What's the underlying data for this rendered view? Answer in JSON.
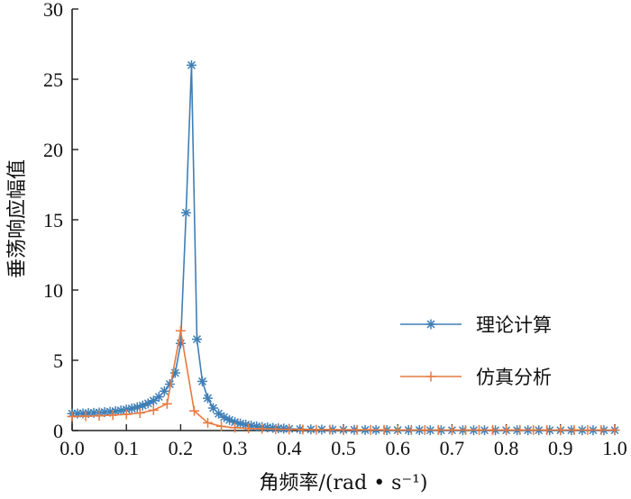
{
  "chart_data": {
    "type": "line",
    "title": "",
    "xlabel": "角频率/(rad • s⁻¹)",
    "ylabel": "垂荡响应幅值",
    "xlim": [
      0,
      1.0
    ],
    "ylim": [
      0,
      30
    ],
    "xticks": [
      "0.0",
      "0.1",
      "0.2",
      "0.3",
      "0.4",
      "0.5",
      "0.6",
      "0.7",
      "0.8",
      "0.9",
      "1.0"
    ],
    "yticks": [
      "0",
      "5",
      "10",
      "15",
      "20",
      "25",
      "30"
    ],
    "legend_position": "right",
    "series": [
      {
        "name": "理论计算",
        "color": "#3f7fb6",
        "marker": "asterisk",
        "x": [
          0.0,
          0.01,
          0.02,
          0.03,
          0.04,
          0.05,
          0.06,
          0.07,
          0.08,
          0.09,
          0.1,
          0.11,
          0.12,
          0.13,
          0.14,
          0.15,
          0.16,
          0.17,
          0.18,
          0.19,
          0.2,
          0.21,
          0.22,
          0.23,
          0.24,
          0.25,
          0.26,
          0.27,
          0.28,
          0.29,
          0.3,
          0.31,
          0.32,
          0.33,
          0.34,
          0.35,
          0.36,
          0.37,
          0.38,
          0.39,
          0.4,
          0.42,
          0.44,
          0.46,
          0.48,
          0.5,
          0.52,
          0.54,
          0.56,
          0.58,
          0.6,
          0.62,
          0.64,
          0.66,
          0.68,
          0.7,
          0.72,
          0.74,
          0.76,
          0.78,
          0.8,
          0.82,
          0.84,
          0.86,
          0.88,
          0.9,
          0.92,
          0.94,
          0.96,
          0.98,
          1.0
        ],
        "y": [
          1.2,
          1.21,
          1.22,
          1.24,
          1.26,
          1.28,
          1.31,
          1.34,
          1.38,
          1.43,
          1.5,
          1.57,
          1.66,
          1.78,
          1.93,
          2.13,
          2.4,
          2.8,
          3.3,
          4.1,
          6.2,
          15.5,
          26.0,
          6.5,
          3.5,
          2.3,
          1.6,
          1.2,
          0.95,
          0.75,
          0.6,
          0.5,
          0.42,
          0.35,
          0.3,
          0.25,
          0.22,
          0.19,
          0.16,
          0.14,
          0.12,
          0.1,
          0.08,
          0.07,
          0.06,
          0.05,
          0.05,
          0.04,
          0.04,
          0.03,
          0.03,
          0.03,
          0.03,
          0.02,
          0.02,
          0.02,
          0.02,
          0.02,
          0.02,
          0.02,
          0.02,
          0.02,
          0.02,
          0.02,
          0.02,
          0.02,
          0.02,
          0.02,
          0.02,
          0.02,
          0.02
        ]
      },
      {
        "name": "仿真分析",
        "color": "#e87a40",
        "marker": "plus",
        "x": [
          0.0,
          0.025,
          0.05,
          0.075,
          0.1,
          0.125,
          0.15,
          0.175,
          0.2,
          0.225,
          0.25,
          0.275,
          0.3,
          0.325,
          0.35,
          0.375,
          0.4,
          0.425,
          0.45,
          0.475,
          0.5,
          0.525,
          0.55,
          0.575,
          0.6,
          0.625,
          0.65,
          0.675,
          0.7,
          0.725,
          0.75,
          0.775,
          0.8,
          0.825,
          0.85,
          0.875,
          0.9,
          0.925,
          0.95,
          0.975,
          1.0
        ],
        "y": [
          1.0,
          1.02,
          1.05,
          1.1,
          1.15,
          1.25,
          1.45,
          1.9,
          7.1,
          1.4,
          0.55,
          0.3,
          0.2,
          0.15,
          0.12,
          0.1,
          0.08,
          0.07,
          0.06,
          0.06,
          0.05,
          0.05,
          0.05,
          0.05,
          0.04,
          0.04,
          0.04,
          0.04,
          0.04,
          0.04,
          0.04,
          0.04,
          0.04,
          0.04,
          0.04,
          0.04,
          0.04,
          0.04,
          0.04,
          0.04,
          0.04
        ]
      }
    ]
  }
}
